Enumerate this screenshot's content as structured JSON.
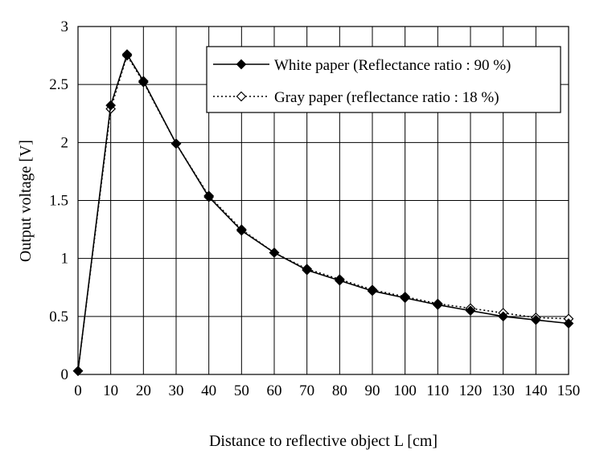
{
  "chart_data": {
    "type": "line",
    "xlabel": "Distance to reflective object L [cm]",
    "ylabel": "Output voltage [V]",
    "xlim": [
      0,
      150
    ],
    "ylim": [
      0,
      3
    ],
    "x_ticks": [
      "0",
      "10",
      "20",
      "30",
      "40",
      "50",
      "60",
      "70",
      "80",
      "90",
      "100",
      "110",
      "120",
      "130",
      "140",
      "150"
    ],
    "y_ticks": [
      "0",
      "0.5",
      "1",
      "1.5",
      "2",
      "2.5",
      "3"
    ],
    "grid": true,
    "legend_position": "top-right",
    "series": [
      {
        "name": "White paper (Reflectance ratio : 90 %)",
        "line_style": "solid",
        "marker": "filled-diamond",
        "color": "#000000",
        "x": [
          0,
          10,
          15,
          20,
          30,
          40,
          50,
          60,
          70,
          80,
          90,
          100,
          110,
          120,
          130,
          140,
          150
        ],
        "y": [
          0.03,
          2.32,
          2.76,
          2.53,
          1.99,
          1.53,
          1.24,
          1.05,
          0.9,
          0.81,
          0.72,
          0.66,
          0.6,
          0.55,
          0.5,
          0.47,
          0.44
        ]
      },
      {
        "name": "Gray paper (reflectance ratio : 18 %)",
        "line_style": "dotted",
        "marker": "open-diamond",
        "color": "#000000",
        "x": [
          0,
          10,
          15,
          20,
          30,
          40,
          50,
          60,
          70,
          80,
          90,
          100,
          110,
          120,
          130,
          140,
          150
        ],
        "y": [
          0.03,
          2.29,
          2.75,
          2.52,
          1.99,
          1.54,
          1.25,
          1.05,
          0.91,
          0.82,
          0.73,
          0.67,
          0.61,
          0.57,
          0.53,
          0.49,
          0.48
        ]
      }
    ]
  }
}
